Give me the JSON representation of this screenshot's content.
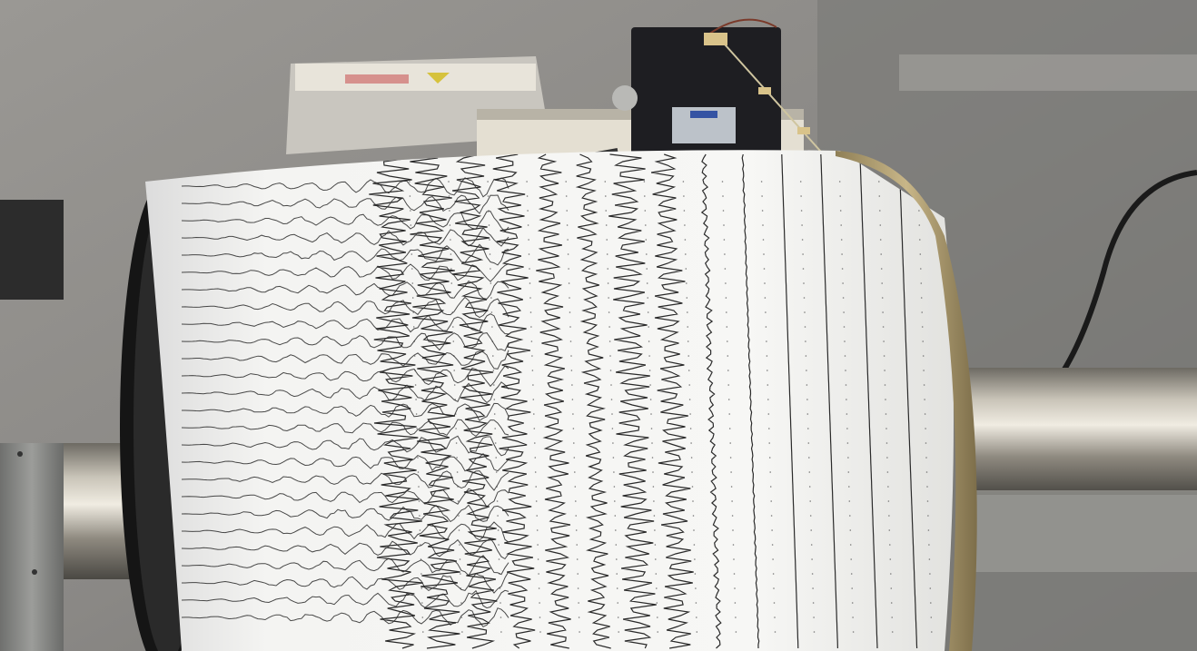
{
  "photo": {
    "subject": "",
    "colors": {
      "wall": "#8f8f8f",
      "wall_dark": "#6b6b6b",
      "paper": "#f2f2f0",
      "ink": "#2a2a2a",
      "steel": "#a8a39a",
      "rim": "#b9a77a",
      "drum_dark": "#1a1a1a",
      "box": "#1e1e22"
    },
    "trace_count": 14,
    "labels": {
      "box_plate": "",
      "device_label": ""
    }
  }
}
